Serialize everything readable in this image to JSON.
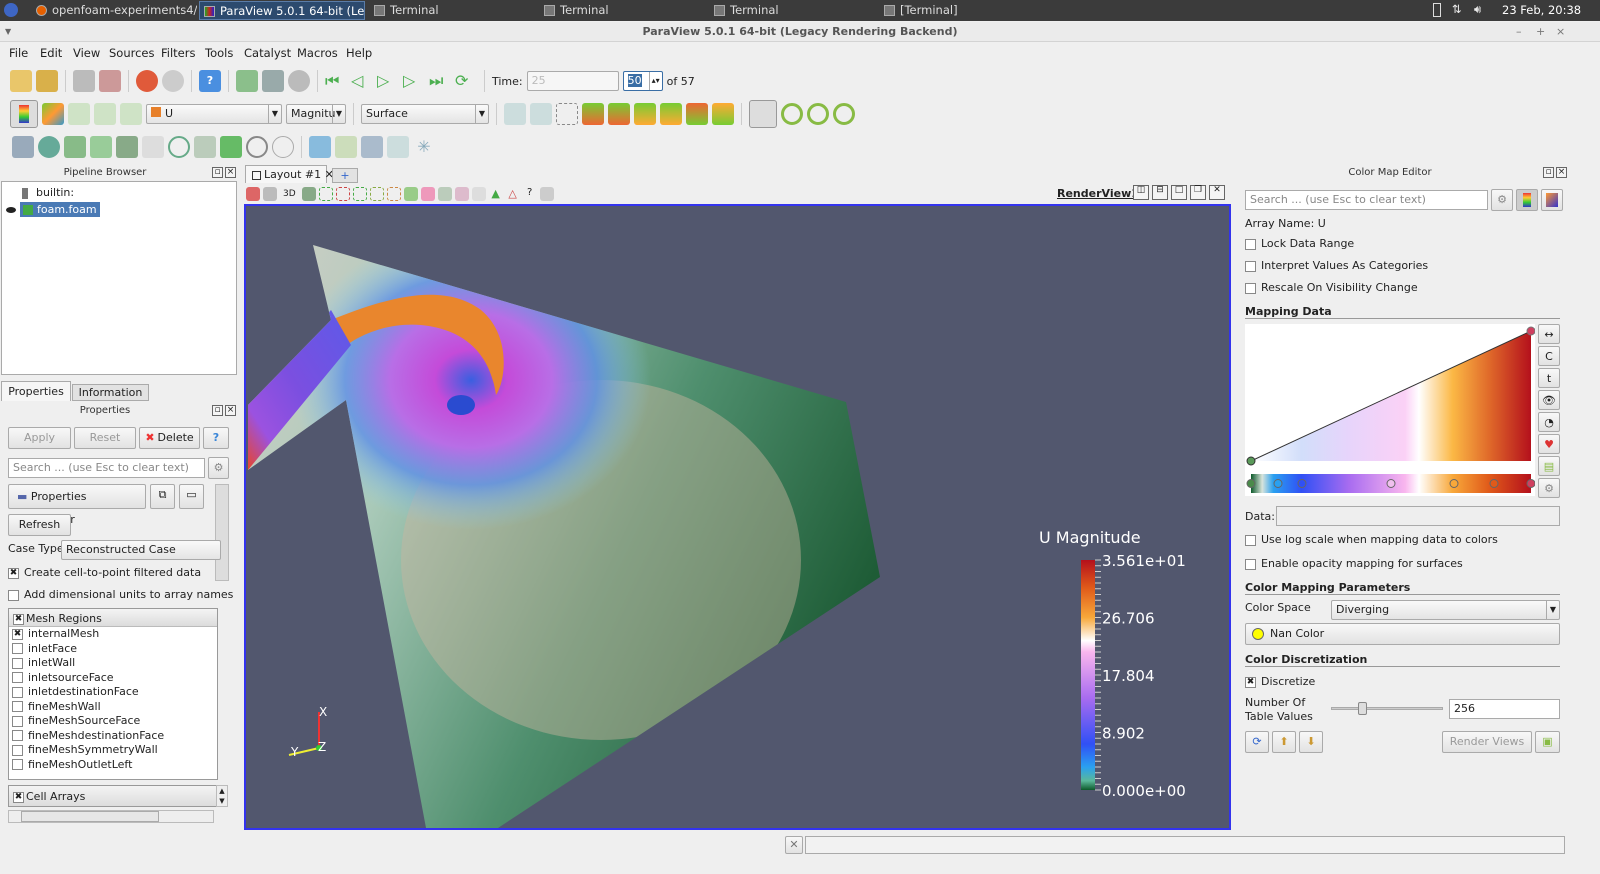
{
  "taskbar": {
    "tasks": [
      "openfoam-experiments4/fvS...",
      "ParaView 5.0.1 64-bit (Legac...",
      "Terminal",
      "Terminal",
      "Terminal",
      "[Terminal]"
    ],
    "clock": "23 Feb, 20:38"
  },
  "window": {
    "title": "ParaView 5.0.1 64-bit (Legacy Rendering Backend)"
  },
  "menu": [
    "File",
    "Edit",
    "View",
    "Sources",
    "Filters",
    "Tools",
    "Catalyst",
    "Macros",
    "Help"
  ],
  "toolbar": {
    "time_label": "Time:",
    "time_value": "25",
    "timestep": "50",
    "of_label": "of 57",
    "array": "U",
    "component": "Magnitu",
    "representation": "Surface"
  },
  "pipeline": {
    "title": "Pipeline Browser",
    "root": "builtin:",
    "source": "foam.foam"
  },
  "tabs": {
    "properties": "Properties",
    "information": "Information"
  },
  "properties": {
    "title": "Properties",
    "apply": "Apply",
    "reset": "Reset",
    "delete": "Delete",
    "help": "?",
    "search_placeholder": "Search ... (use Esc to clear text)",
    "section": "Properties (foam.foar",
    "refresh": "Refresh",
    "case_type_label": "Case Type",
    "case_type": "Reconstructed Case",
    "create_cell_to_point": "Create cell-to-point filtered data",
    "add_units": "Add dimensional units to array names",
    "mesh_regions_header": "Mesh Regions",
    "mesh_regions": [
      {
        "name": "internalMesh",
        "checked": true
      },
      {
        "name": "inletFace",
        "checked": false
      },
      {
        "name": "inletWall",
        "checked": false
      },
      {
        "name": "inletsourceFace",
        "checked": false
      },
      {
        "name": "inletdestinationFace",
        "checked": false
      },
      {
        "name": "fineMeshWall",
        "checked": false
      },
      {
        "name": "fineMeshSourceFace",
        "checked": false
      },
      {
        "name": "fineMeshdestinationFace",
        "checked": false
      },
      {
        "name": "fineMeshSymmetryWall",
        "checked": false
      },
      {
        "name": "fineMeshOutletLeft",
        "checked": false
      }
    ],
    "cell_arrays_header": "Cell Arrays"
  },
  "layout": {
    "tab": "Layout #1",
    "add": "+",
    "view_name": "RenderView1",
    "view_3d": "3D"
  },
  "render": {
    "background": "#52576e",
    "legend_title": "U Magnitude",
    "legend_labels": [
      "3.561e+01",
      "26.706",
      "17.804",
      "8.902",
      "0.000e+00"
    ],
    "axes": {
      "x": "X",
      "y": "Y",
      "z": "Z"
    }
  },
  "colormap": {
    "title": "Color Map Editor",
    "search_placeholder": "Search ... (use Esc to clear text)",
    "array_name": "Array Name: U",
    "lock_range": "Lock Data Range",
    "interpret_categories": "Interpret Values As Categories",
    "rescale_visibility": "Rescale On Visibility Change",
    "mapping_data": "Mapping Data",
    "data_label": "Data:",
    "log_scale": "Use log scale when mapping data to colors",
    "opacity_mapping": "Enable opacity mapping for surfaces",
    "params_title": "Color Mapping Parameters",
    "color_space_label": "Color Space",
    "color_space": "Diverging",
    "nan_color_label": "Nan Color",
    "nan_color": "#ffff00",
    "discretization_title": "Color Discretization",
    "discretize": "Discretize",
    "table_values_label1": "Number Of",
    "table_values_label2": "Table Values",
    "table_values": "256",
    "table_values_fraction": 0.25,
    "render_views": "Render Views"
  }
}
